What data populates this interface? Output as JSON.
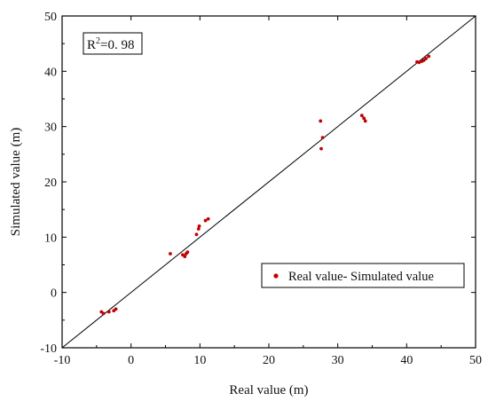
{
  "chart_data": {
    "type": "scatter",
    "xlabel": "Real value (m)",
    "ylabel": "Simulated value (m)",
    "xlim": [
      -10,
      50
    ],
    "ylim": [
      -10,
      50
    ],
    "xticks": [
      "-10",
      "0",
      "10",
      "20",
      "30",
      "40",
      "50"
    ],
    "yticks": [
      "-10",
      "0",
      "10",
      "20",
      "30",
      "40",
      "50"
    ],
    "grid": false,
    "legend_position": "lower-right",
    "annotation": {
      "prefix": "R",
      "superscript": "2",
      "suffix": "=0. 98"
    },
    "reference_line": {
      "from": [
        -10,
        -10
      ],
      "to": [
        50,
        50
      ],
      "color": "#000000"
    },
    "series": [
      {
        "name": "Real value- Simulated value",
        "color": "#c00000",
        "points": [
          [
            -4.3,
            -3.5
          ],
          [
            -4.0,
            -3.8
          ],
          [
            -3.2,
            -3.5
          ],
          [
            -2.5,
            -3.3
          ],
          [
            -2.2,
            -3.0
          ],
          [
            5.7,
            7.0
          ],
          [
            7.5,
            6.8
          ],
          [
            7.8,
            6.5
          ],
          [
            8.0,
            7.0
          ],
          [
            8.2,
            7.3
          ],
          [
            9.5,
            10.5
          ],
          [
            9.8,
            11.5
          ],
          [
            9.9,
            12.0
          ],
          [
            10.8,
            13.0
          ],
          [
            11.2,
            13.3
          ],
          [
            27.5,
            31.0
          ],
          [
            27.6,
            26.0
          ],
          [
            27.8,
            28.0
          ],
          [
            33.5,
            32.0
          ],
          [
            33.8,
            31.5
          ],
          [
            34.0,
            31.0
          ],
          [
            41.5,
            41.7
          ],
          [
            41.8,
            41.6
          ],
          [
            42.2,
            41.8
          ],
          [
            42.5,
            42.0
          ],
          [
            42.8,
            42.3
          ],
          [
            43.2,
            42.7
          ]
        ]
      }
    ]
  }
}
